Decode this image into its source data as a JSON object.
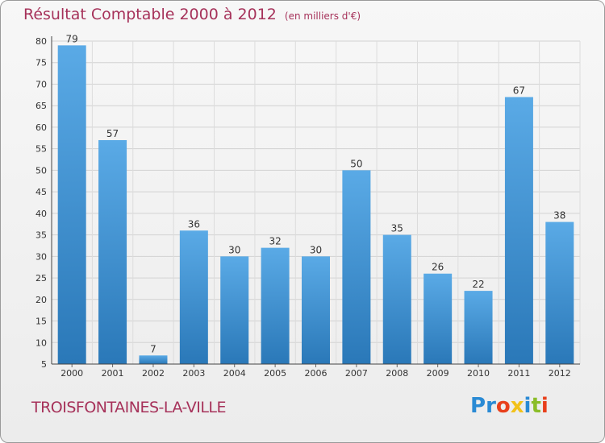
{
  "title": "Résultat Comptable 2000 à 2012",
  "subtitle": "(en milliers d'€)",
  "city": "TROISFONTAINES-LA-VILLE",
  "logo": {
    "letters": [
      "P",
      "r",
      "o",
      "x",
      "i",
      "t",
      "i"
    ],
    "colors": [
      "#2a8ad4",
      "#2a8ad4",
      "#e8401c",
      "#f2c21a",
      "#2a8ad4",
      "#8bbd28",
      "#e8401c"
    ]
  },
  "colors": {
    "title": "#a6325a",
    "bar_light": "#5aaae6",
    "bar_dark": "#2a78b8"
  },
  "chart_data": {
    "type": "bar",
    "categories": [
      "2000",
      "2001",
      "2002",
      "2003",
      "2004",
      "2005",
      "2006",
      "2007",
      "2008",
      "2009",
      "2010",
      "2011",
      "2012"
    ],
    "values": [
      79,
      57,
      7,
      36,
      30,
      32,
      30,
      50,
      35,
      26,
      22,
      67,
      38
    ],
    "ylim": [
      5,
      80
    ],
    "yticks": [
      5,
      10,
      15,
      20,
      25,
      30,
      35,
      40,
      45,
      50,
      55,
      60,
      65,
      70,
      75,
      80
    ],
    "grid": true
  }
}
